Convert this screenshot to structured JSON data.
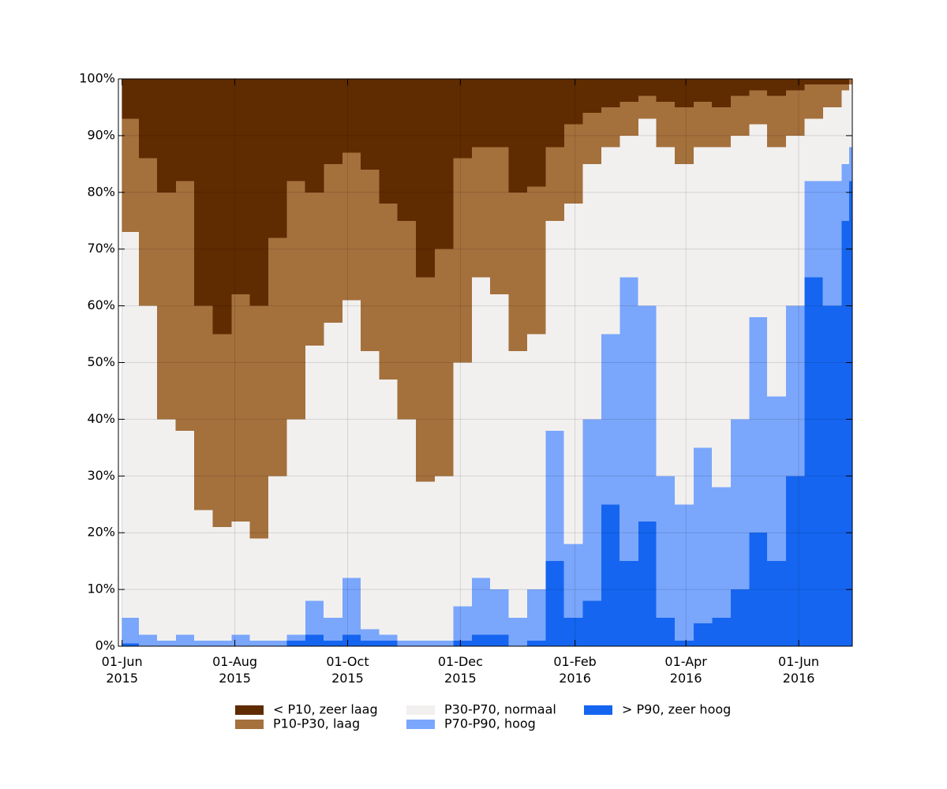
{
  "chart_data": {
    "type": "stacked-area",
    "x": [
      "2015-06-01",
      "2015-06-10",
      "2015-06-20",
      "2015-06-30",
      "2015-07-10",
      "2015-07-20",
      "2015-07-30",
      "2015-08-09",
      "2015-08-19",
      "2015-08-29",
      "2015-09-08",
      "2015-09-18",
      "2015-09-28",
      "2015-10-08",
      "2015-10-18",
      "2015-10-28",
      "2015-11-07",
      "2015-11-17",
      "2015-11-27",
      "2015-12-07",
      "2015-12-17",
      "2015-12-27",
      "2016-01-06",
      "2016-01-16",
      "2016-01-26",
      "2016-02-05",
      "2016-02-15",
      "2016-02-25",
      "2016-03-06",
      "2016-03-16",
      "2016-03-26",
      "2016-04-05",
      "2016-04-15",
      "2016-04-25",
      "2016-05-05",
      "2016-05-15",
      "2016-05-25",
      "2016-06-04",
      "2016-06-14",
      "2016-06-24",
      "2016-06-28"
    ],
    "series": [
      {
        "name": "> P90, zeer hoog",
        "color": "#1565f0",
        "values": [
          0.5,
          0,
          0,
          0,
          0,
          0,
          0,
          0,
          0,
          1,
          2,
          1,
          2,
          1,
          1,
          0,
          0,
          0,
          1,
          2,
          2,
          0,
          1,
          15,
          5,
          8,
          25,
          15,
          22,
          5,
          1,
          4,
          5,
          10,
          20,
          15,
          30,
          65,
          60,
          75,
          82
        ]
      },
      {
        "name": "P70-P90, hoog",
        "color": "#7aa6fc",
        "values": [
          4.5,
          2,
          1,
          2,
          1,
          1,
          2,
          1,
          1,
          1,
          6,
          4,
          10,
          2,
          1,
          1,
          1,
          1,
          6,
          10,
          8,
          5,
          9,
          23,
          13,
          32,
          30,
          50,
          38,
          25,
          24,
          31,
          23,
          30,
          38,
          29,
          30,
          17,
          22,
          10,
          6
        ]
      },
      {
        "name": "P30-P70, normaal",
        "color": "#f2f0ef",
        "values": [
          68,
          58,
          39,
          36,
          23,
          20,
          20,
          18,
          29,
          38,
          45,
          52,
          49,
          49,
          45,
          39,
          28,
          29,
          43,
          53,
          52,
          47,
          45,
          37,
          60,
          45,
          33,
          25,
          33,
          58,
          60,
          53,
          60,
          50,
          34,
          44,
          30,
          11,
          13,
          13,
          11
        ]
      },
      {
        "name": "P10-P30, laag",
        "color": "#a4703c",
        "values": [
          20,
          26,
          40,
          44,
          36,
          34,
          40,
          41,
          42,
          42,
          27,
          28,
          26,
          32,
          31,
          35,
          36,
          40,
          36,
          23,
          26,
          28,
          26,
          13,
          14,
          9,
          7,
          6,
          4,
          8,
          10,
          8,
          7,
          7,
          6,
          9,
          8,
          6,
          4,
          1,
          1
        ]
      },
      {
        "name": "< P10, zeer laag",
        "color": "#5f2b00",
        "values": [
          7,
          14,
          20,
          18,
          40,
          45,
          38,
          40,
          28,
          18,
          20,
          15,
          13,
          16,
          22,
          25,
          35,
          30,
          14,
          12,
          12,
          20,
          19,
          12,
          8,
          6,
          5,
          4,
          3,
          4,
          5,
          4,
          5,
          3,
          2,
          3,
          2,
          1,
          1,
          1,
          0
        ]
      }
    ],
    "xlim": [
      "2015-05-30",
      "2016-06-30"
    ],
    "xticks": [
      {
        "value": "2015-06-01",
        "label": "01-Jun\n2015"
      },
      {
        "value": "2015-08-01",
        "label": "01-Aug\n2015"
      },
      {
        "value": "2015-10-01",
        "label": "01-Oct\n2015"
      },
      {
        "value": "2015-12-01",
        "label": "01-Dec\n2015"
      },
      {
        "value": "2016-02-01",
        "label": "01-Feb\n2016"
      },
      {
        "value": "2016-04-01",
        "label": "01-Apr\n2016"
      },
      {
        "value": "2016-06-01",
        "label": "01-Jun\n2016"
      }
    ],
    "ylim": [
      0,
      100
    ],
    "yticks": [
      {
        "value": 0,
        "label": "0%"
      },
      {
        "value": 10,
        "label": "10%"
      },
      {
        "value": 20,
        "label": "20%"
      },
      {
        "value": 30,
        "label": "30%"
      },
      {
        "value": 40,
        "label": "40%"
      },
      {
        "value": 50,
        "label": "50%"
      },
      {
        "value": 60,
        "label": "60%"
      },
      {
        "value": 70,
        "label": "70%"
      },
      {
        "value": 80,
        "label": "80%"
      },
      {
        "value": 90,
        "label": "90%"
      },
      {
        "value": 100,
        "label": "100%"
      }
    ],
    "grid": true,
    "legend": "bottom"
  }
}
